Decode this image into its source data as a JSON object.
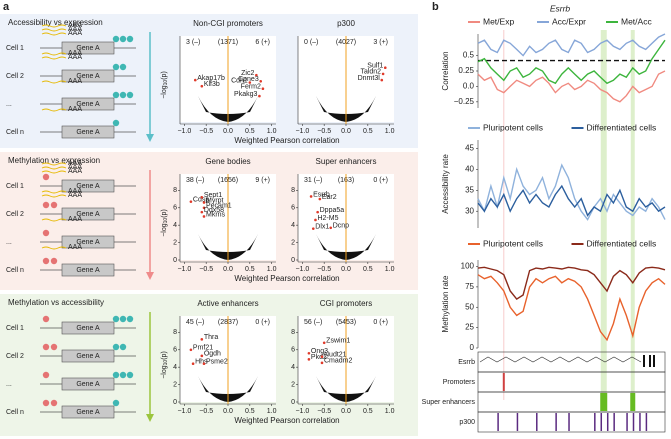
{
  "panel_a": {
    "label": "a",
    "x_label": "Weighted Pearson correlation",
    "y_label": {
      "main": "−log",
      "sub": "10",
      "tail": "(p)"
    },
    "xlim": [
      -1.1,
      1.1
    ],
    "xticks": [
      {
        "value": -1,
        "label": "−1.0"
      },
      {
        "value": -0.5,
        "label": "−0.5"
      },
      {
        "value": 0,
        "label": "0.0"
      },
      {
        "value": 0.5,
        "label": "0.5"
      },
      {
        "value": 1,
        "label": "1.0"
      }
    ],
    "center_line": 0,
    "gene_label": "Gene A",
    "transcript_label": "AAA",
    "cells": [
      "Cell 1",
      "Cell 2",
      "...",
      "Cell n"
    ],
    "rows": [
      {
        "title": "Accessibility vs expression",
        "ylim": [
          0,
          6
        ],
        "yticks": [],
        "plots": [
          {
            "title": "Non-CGI promoters",
            "neg": "3 (–)",
            "total": "(1371)",
            "pos": "6 (+)",
            "points": [
              {
                "name": "Akap17b",
                "x": -0.75,
                "y": 3.4
              },
              {
                "name": "Klf3b",
                "x": -0.6,
                "y": 2.9
              },
              {
                "name": "Zic2",
                "x": 0.65,
                "y": 3.8
              },
              {
                "name": "Cdh1",
                "x": 0.5,
                "y": 3.2
              },
              {
                "name": "Cpne3",
                "x": 0.75,
                "y": 3.3
              },
              {
                "name": "Ferm2",
                "x": 0.8,
                "y": 2.7
              },
              {
                "name": "Pkakg3",
                "x": 0.72,
                "y": 2.1
              }
            ]
          },
          {
            "title": "p300",
            "neg": "0 (–)",
            "total": "(4027)",
            "pos": "3 (+)",
            "points": [
              {
                "name": "Sulf1",
                "x": 0.9,
                "y": 4.4
              },
              {
                "name": "Taldn2",
                "x": 0.85,
                "y": 3.9
              },
              {
                "name": "Dnmt3l",
                "x": 0.82,
                "y": 3.4
              }
            ]
          }
        ]
      },
      {
        "title": "Methylation vs expression",
        "ylim": [
          0,
          8.5
        ],
        "yticks": [
          0,
          2,
          4,
          6,
          8
        ],
        "plots": [
          {
            "title": "Gene bodies",
            "neg": "38 (–)",
            "total": "(1656)",
            "pos": "9 (+)",
            "points": [
              {
                "name": "Cdsp",
                "x": -0.85,
                "y": 6.7
              },
              {
                "name": "Sept1",
                "x": -0.6,
                "y": 7.2
              },
              {
                "name": "Myrpt",
                "x": -0.55,
                "y": 6.6
              },
              {
                "name": "Pecam1",
                "x": -0.55,
                "y": 6.0
              },
              {
                "name": "Ddx58",
                "x": -0.6,
                "y": 5.5
              },
              {
                "name": "Mkrns",
                "x": -0.55,
                "y": 5.0
              }
            ]
          },
          {
            "title": "Super enhancers",
            "neg": "31 (–)",
            "total": "(163)",
            "pos": "0 (+)",
            "points": [
              {
                "name": "Esrrb",
                "x": -0.8,
                "y": 7.3
              },
              {
                "name": "Ear2",
                "x": -0.6,
                "y": 7.0
              },
              {
                "name": "Dppa5a",
                "x": -0.65,
                "y": 5.5
              },
              {
                "name": "H2-M5",
                "x": -0.7,
                "y": 4.6
              },
              {
                "name": "Dlx1",
                "x": -0.75,
                "y": 3.6
              },
              {
                "name": "Dcnp",
                "x": -0.35,
                "y": 3.7
              }
            ]
          }
        ]
      },
      {
        "title": "Methylation vs accessibility",
        "ylim": [
          0,
          8.5
        ],
        "yticks": [
          0,
          2,
          4,
          6,
          8
        ],
        "plots": [
          {
            "title": "Active enhancers",
            "neg": "45 (–)",
            "total": "(2837)",
            "pos": "0 (+)",
            "points": [
              {
                "name": "Thra",
                "x": -0.6,
                "y": 7.2
              },
              {
                "name": "Pmf21",
                "x": -0.85,
                "y": 6.0
              },
              {
                "name": "Ogdh",
                "x": -0.6,
                "y": 5.3
              },
              {
                "name": "Hhs",
                "x": -0.8,
                "y": 4.4
              },
              {
                "name": "Psme2",
                "x": -0.55,
                "y": 4.4
              }
            ]
          },
          {
            "title": "CGI promoters",
            "neg": "56 (–)",
            "total": "(5453)",
            "pos": "0 (+)",
            "points": [
              {
                "name": "Zswim1",
                "x": -0.5,
                "y": 6.8
              },
              {
                "name": "Ong3",
                "x": -0.85,
                "y": 5.6
              },
              {
                "name": "Pkd2",
                "x": -0.85,
                "y": 4.9
              },
              {
                "name": "Nudt21",
                "x": -0.55,
                "y": 5.2
              },
              {
                "name": "Cmadm2",
                "x": -0.55,
                "y": 4.5
              }
            ]
          }
        ]
      }
    ]
  },
  "panel_b": {
    "label": "b",
    "gene": "Esrrb",
    "correlation": {
      "y_label": "Correlation",
      "ylim": [
        -0.35,
        0.85
      ],
      "yticks": [
        {
          "value": -0.25,
          "label": "−0.25"
        },
        {
          "value": 0,
          "label": "0.0"
        },
        0.25,
        0.5
      ],
      "threshold": 0.42,
      "series": [
        {
          "name": "Met/Exp",
          "color": "#f08a80",
          "values": [
            0.2,
            0.1,
            0.15,
            -0.05,
            -0.1,
            0.0,
            0.1,
            0.05,
            0.0,
            0.1,
            0.15,
            0.05,
            -0.1,
            0.0,
            0.05,
            -0.05,
            0.0,
            0.1,
            0.05,
            -0.05,
            -0.1,
            -0.2,
            -0.25,
            -0.15,
            0.0,
            -0.1,
            -0.05,
            0.0,
            0.2,
            0.25
          ]
        },
        {
          "name": "Acc/Expr",
          "color": "#86a6d8",
          "values": [
            0.7,
            0.75,
            0.6,
            0.55,
            0.75,
            0.7,
            0.6,
            0.5,
            0.65,
            0.55,
            0.6,
            0.7,
            0.75,
            0.6,
            0.55,
            0.75,
            0.7,
            0.55,
            0.6,
            0.7,
            0.75,
            0.65,
            0.6,
            0.7,
            0.75,
            0.65,
            0.6,
            0.7,
            0.8,
            0.85
          ]
        },
        {
          "name": "Met/Acc",
          "color": "#3db53d",
          "values": [
            0.4,
            0.45,
            0.3,
            0.2,
            0.1,
            0.25,
            0.3,
            0.15,
            0.2,
            0.3,
            0.25,
            0.1,
            0.05,
            0.2,
            0.3,
            0.2,
            0.1,
            0.2,
            0.25,
            0.15,
            0.05,
            0.1,
            0.2,
            0.15,
            0.3,
            0.2,
            0.25,
            0.45,
            0.6,
            0.75
          ]
        }
      ]
    },
    "accessibility": {
      "y_label": "Accessibility rate",
      "ylim": [
        26,
        47
      ],
      "yticks": [
        30,
        35,
        40,
        45
      ],
      "series": [
        {
          "name": "Pluripotent cells",
          "color": "#8fb2dc",
          "values": [
            33,
            30,
            36,
            31,
            38,
            33,
            40,
            36,
            34,
            35,
            38,
            33,
            36,
            41,
            38,
            33,
            30,
            28,
            31,
            33,
            30,
            34,
            32,
            30,
            29,
            31,
            30,
            33,
            31,
            28
          ]
        },
        {
          "name": "Differentiated cells",
          "color": "#2c5f9e",
          "values": [
            32,
            30,
            33,
            31,
            34,
            30,
            33,
            35,
            32,
            34,
            32,
            31,
            34,
            36,
            33,
            31,
            33,
            29,
            31,
            30,
            34,
            32,
            35,
            31,
            30,
            33,
            31,
            32,
            30,
            31
          ]
        }
      ]
    },
    "methylation": {
      "y_label": "Methylation rate",
      "ylim": [
        0,
        108
      ],
      "yticks": [
        0,
        25,
        50,
        75,
        100
      ],
      "series": [
        {
          "name": "Pluripotent cells",
          "color": "#e8622c",
          "values": [
            90,
            85,
            88,
            80,
            70,
            50,
            40,
            45,
            75,
            85,
            80,
            85,
            88,
            80,
            85,
            82,
            75,
            60,
            40,
            20,
            10,
            30,
            60,
            40,
            15,
            50,
            70,
            80,
            85,
            78
          ]
        },
        {
          "name": "Differentiated cells",
          "color": "#8b2a1a",
          "values": [
            98,
            99,
            97,
            95,
            90,
            70,
            60,
            65,
            95,
            98,
            97,
            99,
            98,
            97,
            99,
            98,
            96,
            95,
            90,
            80,
            70,
            88,
            95,
            90,
            80,
            92,
            98,
            99,
            98,
            96
          ]
        }
      ]
    },
    "tracks": [
      "Esrrb",
      "Promoters",
      "Super enhancers",
      "p300"
    ]
  }
}
